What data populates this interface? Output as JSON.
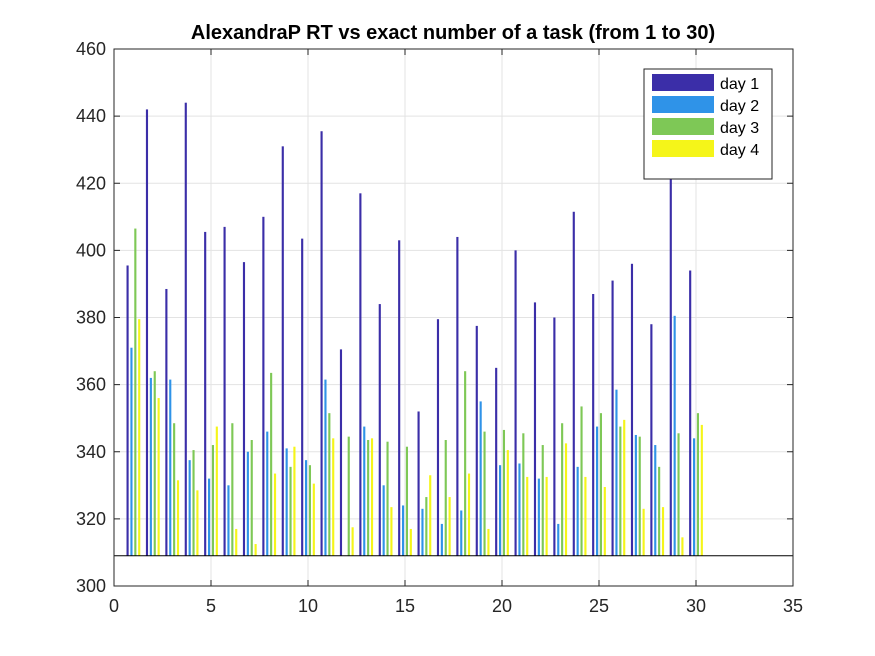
{
  "chart_data": {
    "type": "bar",
    "title": "AlexandraP RT vs exact number of a task (from 1 to 30)",
    "xlabel": "",
    "ylabel": "",
    "xlim": [
      0,
      35
    ],
    "ylim": [
      300,
      460
    ],
    "xticks": [
      "0",
      "5",
      "10",
      "15",
      "20",
      "25",
      "30",
      "35"
    ],
    "yticks": [
      "300",
      "320",
      "340",
      "360",
      "380",
      "400",
      "420",
      "440",
      "460"
    ],
    "grid": true,
    "legend_position": "top-right",
    "bar_base": 309,
    "x": [
      1,
      2,
      3,
      4,
      5,
      6,
      7,
      8,
      9,
      10,
      11,
      12,
      13,
      14,
      15,
      16,
      17,
      18,
      19,
      20,
      21,
      22,
      23,
      24,
      25,
      26,
      27,
      28,
      29,
      30
    ],
    "series": [
      {
        "name": "day 1",
        "color": "#3b2ea8",
        "values": [
          395.5,
          442,
          388.5,
          444,
          405.5,
          407,
          396.5,
          410,
          431,
          403.5,
          435.5,
          370.5,
          417,
          384,
          403,
          352,
          379.5,
          404,
          377.5,
          365,
          400,
          384.5,
          380,
          411.5,
          387,
          391,
          396,
          378,
          428,
          394
        ]
      },
      {
        "name": "day 2",
        "color": "#2f93e8",
        "values": [
          371,
          362,
          361.5,
          337.5,
          332,
          330,
          340,
          346,
          341,
          337.5,
          361.5,
          309,
          347.5,
          330,
          324,
          323,
          318.5,
          322.5,
          355,
          336,
          336.5,
          332,
          318.5,
          335.5,
          347.5,
          358.5,
          345,
          342,
          380.5,
          344
        ]
      },
      {
        "name": "day 3",
        "color": "#7ec856",
        "values": [
          406.5,
          364,
          348.5,
          340.5,
          342,
          348.5,
          343.5,
          363.5,
          335.5,
          336,
          351.5,
          344.5,
          343.5,
          343,
          341.5,
          326.5,
          343.5,
          364,
          346,
          346.5,
          345.5,
          342,
          348.5,
          353.5,
          351.5,
          347.5,
          344.5,
          335.5,
          345.5,
          351.5
        ]
      },
      {
        "name": "day 4",
        "color": "#f5f519",
        "values": [
          379.5,
          356,
          331.5,
          328.5,
          347.5,
          317,
          312.5,
          333.5,
          341.5,
          330.5,
          344,
          317.5,
          344,
          323.5,
          317,
          333,
          326.5,
          333.5,
          317,
          340.5,
          332.5,
          332.5,
          342.5,
          332.5,
          329.5,
          349.5,
          323,
          323.5,
          314.5,
          348
        ]
      }
    ]
  }
}
